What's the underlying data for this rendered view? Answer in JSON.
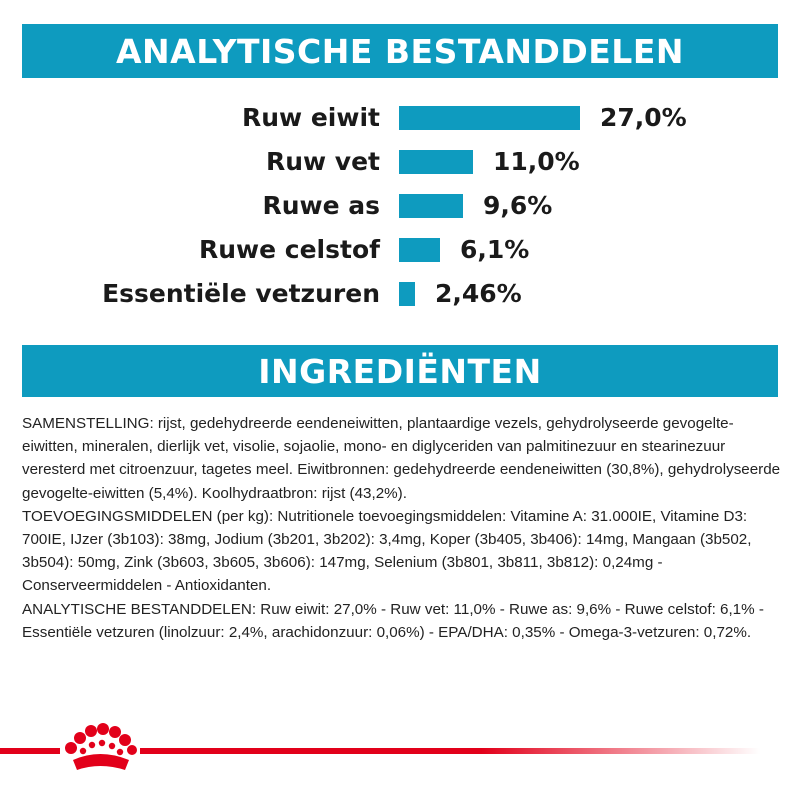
{
  "analysis": {
    "title": "ANALYTISCHE BESTANDDELEN",
    "rows": [
      {
        "label": "Ruw eiwit",
        "value": "27,0%",
        "percent": 27.0
      },
      {
        "label": "Ruw vet",
        "value": "11,0%",
        "percent": 11.0
      },
      {
        "label": "Ruwe as",
        "value": "9,6%",
        "percent": 9.6
      },
      {
        "label": "Ruwe celstof",
        "value": "6,1%",
        "percent": 6.1
      },
      {
        "label": "Essentiële vetzuren",
        "value": "2,46%",
        "percent": 2.46
      }
    ]
  },
  "ingredients": {
    "title": "INGREDIËNTEN",
    "paragraphs": [
      "SAMENSTELLING: rijst, gedehydreerde eendeneiwitten, plantaardige vezels, gehydrolyseerde gevogelte-eiwitten, mineralen, dierlijk vet, visolie, sojaolie, mono- en diglyceriden van palmitinezuur en stearinezuur veresterd met citroenzuur, tagetes meel. Eiwitbronnen: gedehydreerde eendeneiwitten (30,8%), gehydrolyseerde gevogelte-eiwitten (5,4%). Koolhydraatbron: rijst (43,2%).",
      "TOEVOEGINGSMIDDELEN (per kg): Nutritionele toevoegingsmiddelen: Vitamine A: 31.000IE, Vitamine D3: 700IE, IJzer (3b103): 38mg, Jodium (3b201, 3b202): 3,4mg, Koper (3b405, 3b406): 14mg, Mangaan (3b502, 3b504): 50mg, Zink (3b603, 3b605, 3b606): 147mg, Selenium (3b801, 3b811, 3b812): 0,24mg - Conserveermiddelen - Antioxidanten.",
      "ANALYTISCHE BESTANDDELEN: Ruw eiwit: 27,0% - Ruw vet: 11,0% - Ruwe as: 9,6% - Ruwe celstof: 6,1% - Essentiële vetzuren (linolzuur: 2,4%, arachidonzuur: 0,06%) - EPA/DHA: 0,35% - Omega-3-vetzuren: 0,72%."
    ]
  },
  "colors": {
    "accent": "#0e9bbf",
    "brand_red": "#e2001a",
    "text": "#1a1a1a"
  },
  "icons": {
    "brand_logo": "royal-canin-crown-icon"
  }
}
